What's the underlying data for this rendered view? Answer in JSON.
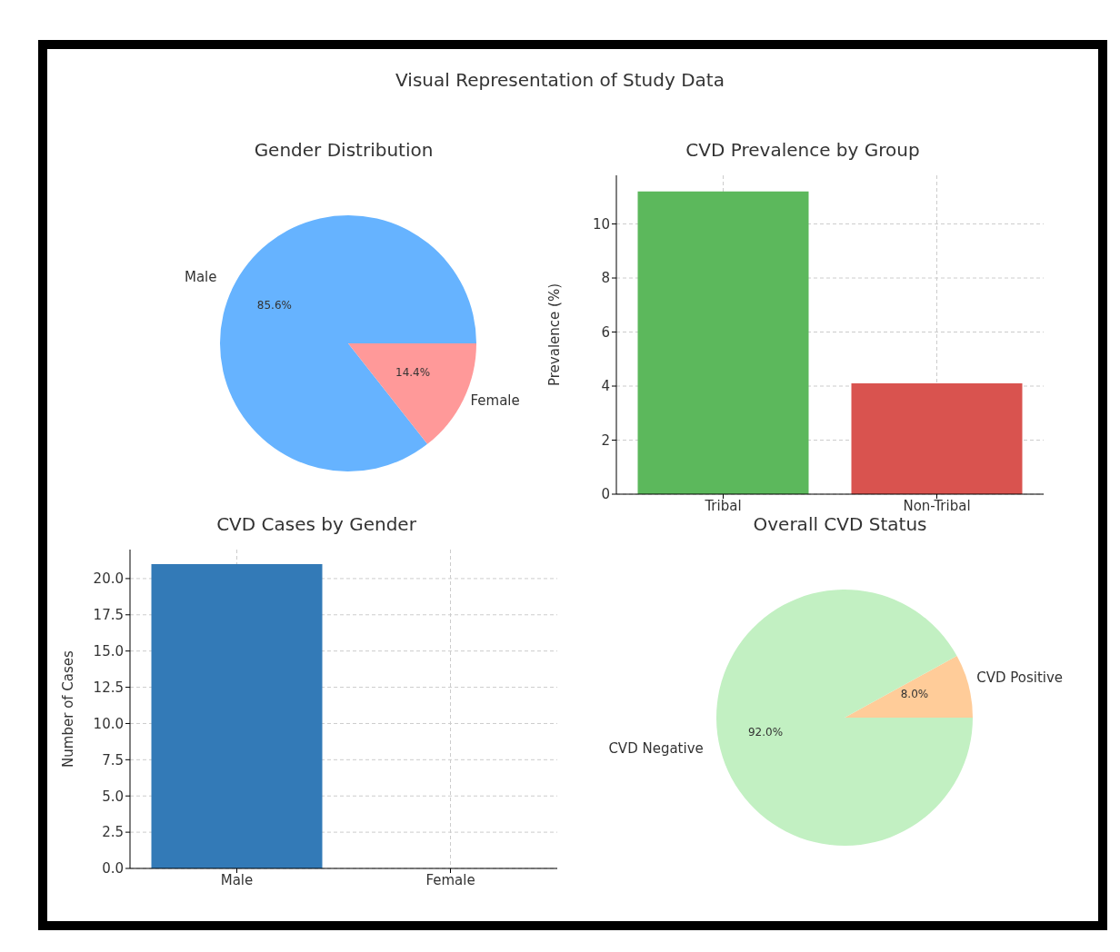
{
  "chart_data": [
    {
      "type": "pie",
      "title": "Gender Distribution",
      "annotations": [
        "Visual Representation of Study Data"
      ],
      "categories": [
        "Male",
        "Female"
      ],
      "values": [
        85.6,
        14.4
      ],
      "colors": [
        "#66b3ff",
        "#ff9999"
      ],
      "value_labels": [
        "85.6%",
        "14.4%"
      ],
      "legend": false
    },
    {
      "type": "bar",
      "title": "CVD Prevalence by Group",
      "ylabel": "Prevalence (%)",
      "categories": [
        "Tribal",
        "Non-Tribal"
      ],
      "values": [
        11.2,
        4.1
      ],
      "colors": [
        "#5cb85c",
        "#d9534f"
      ],
      "ylim": [
        0,
        11.8
      ],
      "yticks": [
        0,
        2,
        4,
        6,
        8,
        10
      ],
      "grid": true,
      "legend": false
    },
    {
      "type": "bar",
      "title": "CVD Cases by Gender",
      "ylabel": "Number of Cases",
      "categories": [
        "Male",
        "Female"
      ],
      "values": [
        21,
        0
      ],
      "colors": [
        "#337ab7",
        "#337ab7"
      ],
      "ylim": [
        0,
        22
      ],
      "yticks": [
        {
          "value": 0,
          "label": "0.0"
        },
        {
          "value": 2.5,
          "label": "2.5"
        },
        {
          "value": 5,
          "label": "5.0"
        },
        {
          "value": 7.5,
          "label": "7.5"
        },
        {
          "value": 10,
          "label": "10.0"
        },
        {
          "value": 12.5,
          "label": "12.5"
        },
        {
          "value": 15,
          "label": "15.0"
        },
        {
          "value": 17.5,
          "label": "17.5"
        },
        {
          "value": 20,
          "label": "20.0"
        }
      ],
      "grid": true,
      "legend": false
    },
    {
      "type": "pie",
      "title": "Overall CVD Status",
      "categories": [
        "CVD Positive",
        "CVD Negative"
      ],
      "values": [
        8.0,
        92.0
      ],
      "colors": [
        "#ffcc99",
        "#c2f0c2"
      ],
      "value_labels": [
        "8.0%",
        "92.0%"
      ],
      "legend": false
    }
  ]
}
